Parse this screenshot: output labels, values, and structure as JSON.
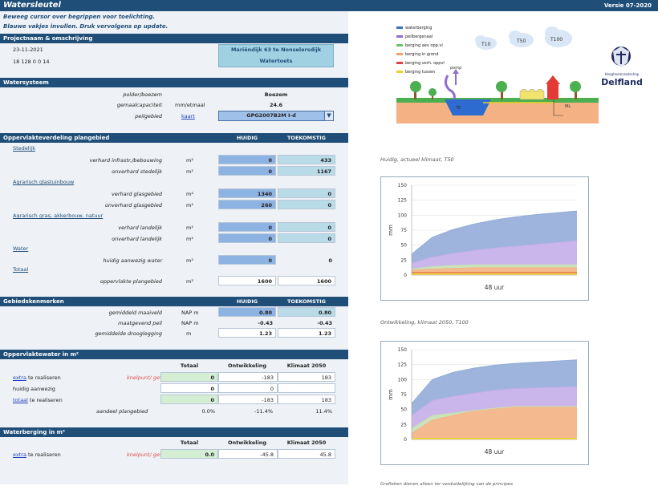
{
  "title": "Watersleutel",
  "version": "Versie 07-2020",
  "instructions": [
    "Beweeg cursor over begrippen voor toelichting.",
    "Blauwe vakjes invullen. Druk vervolgens op update."
  ],
  "project": {
    "header": "Projectnaam & omschrijving",
    "date": "23-11-2021",
    "code": "18 128 0 0 14",
    "name": "Mariëndijk 63 te Nonselersdijk",
    "type": "Watertoets"
  },
  "watersysteem": {
    "header": "Watersysteem",
    "rows": [
      {
        "label": "polder/boezem",
        "unit": "",
        "value": "Boezem"
      },
      {
        "label": "gemaalcapaciteit",
        "unit": "mm/etmaal",
        "value": "24.6"
      },
      {
        "label": "peilgebied",
        "unit": "kaart",
        "value": "GPG2007B2M I-d"
      }
    ]
  },
  "opp": {
    "header": "Oppervlakteverdeling plangebied",
    "col_huidig": "HUIDIG",
    "col_toekomstig": "TOEKOMSTIG",
    "sections": [
      {
        "title": "Stedelijk",
        "rows": [
          {
            "label": "verhard infrastr./bebouwing",
            "unit": "m²",
            "h": "0",
            "t": "433"
          },
          {
            "label": "onverhard stedelijk",
            "unit": "m²",
            "h": "0",
            "t": "1167"
          }
        ]
      },
      {
        "title": "Agrarisch glastuinbouw",
        "rows": [
          {
            "label": "verhard glasgebied",
            "unit": "m²",
            "h": "1340",
            "t": "0"
          },
          {
            "label": "onverhard glasgebied",
            "unit": "m²",
            "h": "260",
            "t": "0"
          }
        ]
      },
      {
        "title": "Agrarisch gras, akkerbouw, natuur",
        "rows": [
          {
            "label": "verhard landelijk",
            "unit": "m²",
            "h": "0",
            "t": "0"
          },
          {
            "label": "onverhard landelijk",
            "unit": "m²",
            "h": "0",
            "t": "0"
          }
        ]
      },
      {
        "title": "Water",
        "rows": [
          {
            "label": "huidig aanwezig water",
            "unit": "m²",
            "h": "0",
            "t": "0"
          }
        ]
      },
      {
        "title": "Totaal",
        "rows": [
          {
            "label": "oppervlakte plangebied",
            "unit": "m²",
            "h": "1600",
            "t": "1600"
          }
        ]
      }
    ]
  },
  "gebied": {
    "header": "Gebiedskenmerken",
    "col_huidig": "HUIDIG",
    "col_toekomstig": "TOEKOMSTIG",
    "rows": [
      {
        "label": "gemiddeld maaiveld",
        "unit": "NAP m",
        "h": "0.80",
        "t": "0.80"
      },
      {
        "label": "maatgevend peil",
        "unit": "NAP m",
        "h": "-0.43",
        "t": "-0.43"
      },
      {
        "label": "gemiddelde drooglegging",
        "unit": "m",
        "h": "1.23",
        "t": "1.23"
      }
    ]
  },
  "ow": {
    "header": "Oppervlaktewater in m²",
    "cols": [
      "Totaal",
      "Ontwikkeling",
      "Klimaat 2050"
    ],
    "rows": [
      {
        "l1": "extra",
        "l2": " te realiseren",
        "note": "knelpunt/ gevolg",
        "v": [
          "0",
          "-183",
          "183"
        ]
      },
      {
        "l1": "",
        "l2": "huidig aanwezig",
        "note": "",
        "v": [
          "0",
          "0",
          ""
        ]
      },
      {
        "l1": "totaal",
        "l2": " te realiseren",
        "note": "",
        "v": [
          "0",
          "-183",
          "183"
        ]
      }
    ],
    "aandeel_label": "aandeel plangebied",
    "aandeel": [
      "0.0%",
      "-11.4%",
      "11.4%"
    ]
  },
  "wb": {
    "header": "Waterberging in m³",
    "cols": [
      "Totaal",
      "Ontwikkeling",
      "Klimaat 2050"
    ],
    "row": {
      "l1": "extra",
      "l2": " te realiseren",
      "note": "knelpunt/ gevolg",
      "v": [
        "0.0",
        "-45.8",
        "45.8"
      ]
    }
  },
  "legend": [
    {
      "label": "waterberging",
      "color": "#3d6fc0"
    },
    {
      "label": "peilbergenaal",
      "color": "#8e6fd0"
    },
    {
      "label": "berging aev opp.vl",
      "color": "#70c070"
    },
    {
      "label": "berging in grond",
      "color": "#f0a070"
    },
    {
      "label": "berging verh. oppvl",
      "color": "#e04040"
    },
    {
      "label": "berging tussen",
      "color": "#e8d030"
    }
  ],
  "illus": {
    "t10": "T10",
    "t50": "T50",
    "t100": "T100",
    "pomp": "pomp",
    "te": "TE",
    "ml": "ML",
    "logo_caption": "Hoogheemraadschap",
    "logo_name": "Delfland"
  },
  "chart1_caption": "Huidig, actueel klimaat, T50",
  "chart2_caption": "Ontwikkeling, klimaat 2050, T100",
  "footer": "Grafieken dienen alleen ter verduidelijking van de principes",
  "chart_data": [
    {
      "type": "area",
      "title": "Huidig, actueel klimaat, T50",
      "xlabel": "48 uur",
      "ylabel": "mm",
      "ylim": [
        0,
        150
      ],
      "yticks": [
        "150",
        "125",
        "100",
        "75",
        "50",
        "25",
        "0"
      ],
      "series": [
        {
          "name": "berging tussen",
          "color": "#f5d533",
          "values": [
            3,
            3,
            3,
            3,
            3,
            3,
            3,
            3,
            3
          ]
        },
        {
          "name": "berging verh. oppvl",
          "color": "#e05050",
          "values": [
            1,
            1,
            1,
            1,
            1,
            1,
            1,
            1,
            1
          ]
        },
        {
          "name": "berging in grond",
          "color": "#f4b183",
          "values": [
            4,
            6,
            7,
            8,
            8,
            8,
            8,
            8,
            8
          ]
        },
        {
          "name": "berging aev opp.vl",
          "color": "#c5e0b4",
          "values": [
            2,
            4,
            5,
            5,
            5,
            5,
            5,
            5,
            5
          ]
        },
        {
          "name": "peilbergenaal",
          "color": "#c4aee8",
          "values": [
            10,
            16,
            20,
            24,
            28,
            31,
            34,
            37,
            40
          ]
        },
        {
          "name": "waterberging",
          "color": "#93acd8",
          "values": [
            15,
            33,
            40,
            44,
            47,
            49,
            50,
            50,
            50
          ]
        }
      ]
    },
    {
      "type": "area",
      "title": "Ontwikkeling, klimaat 2050, T100",
      "xlabel": "48 uur",
      "ylabel": "mm",
      "ylim": [
        0,
        150
      ],
      "yticks": [
        "150",
        "125",
        "100",
        "75",
        "50",
        "25",
        "0"
      ],
      "series": [
        {
          "name": "berging tussen",
          "color": "#f5d533",
          "values": [
            2,
            2,
            2,
            2,
            2,
            2,
            2,
            2,
            2
          ]
        },
        {
          "name": "berging in grond",
          "color": "#f4b183",
          "values": [
            8,
            30,
            38,
            45,
            50,
            53,
            53,
            53,
            53
          ]
        },
        {
          "name": "berging aev opp.vl",
          "color": "#c5e0b4",
          "values": [
            8,
            8,
            4,
            1,
            0,
            0,
            0,
            0,
            0
          ]
        },
        {
          "name": "peilbergenaal",
          "color": "#c4aee8",
          "values": [
            22,
            25,
            28,
            29,
            30,
            30,
            31,
            32,
            33
          ]
        },
        {
          "name": "waterberging",
          "color": "#93acd8",
          "values": [
            20,
            35,
            40,
            42,
            42,
            42,
            43,
            44,
            45
          ]
        }
      ]
    }
  ]
}
